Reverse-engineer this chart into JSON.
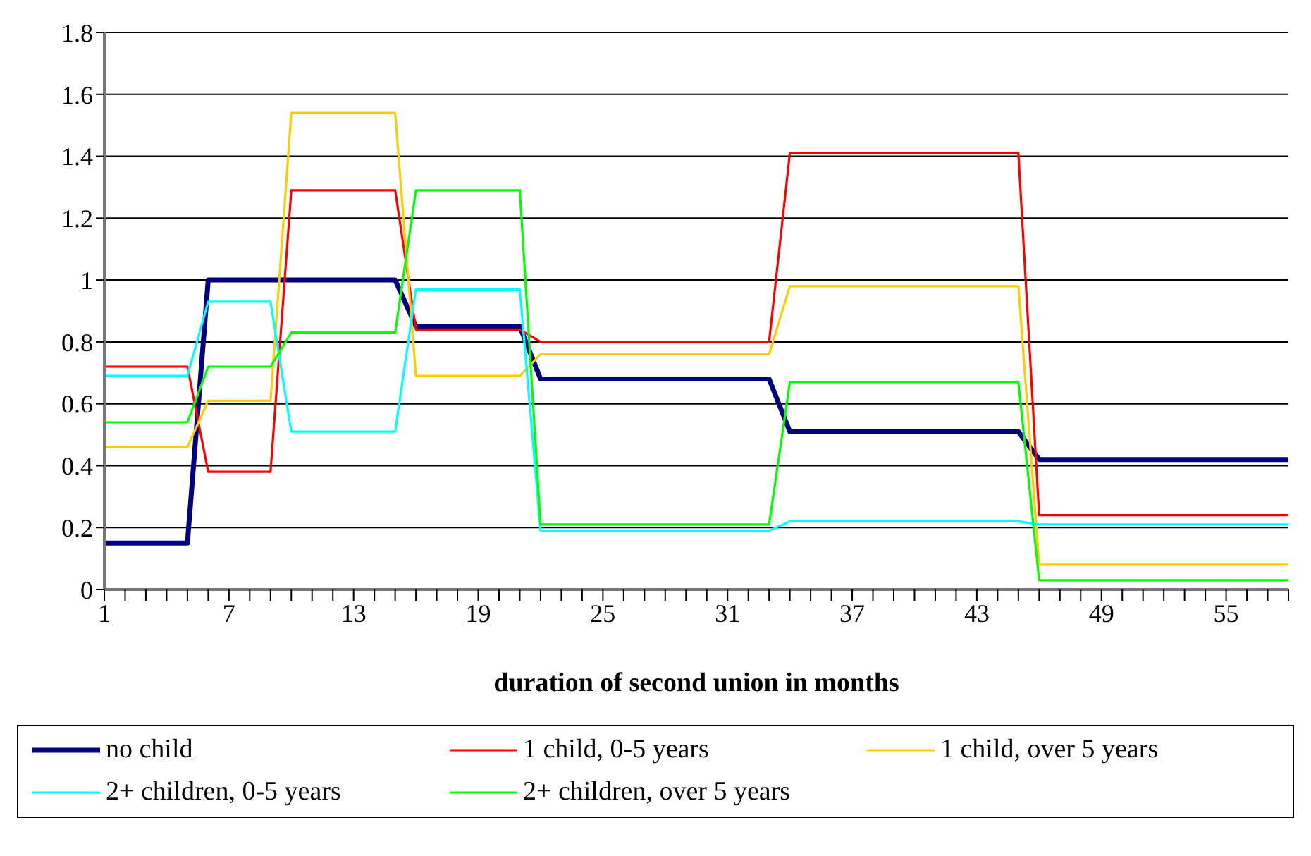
{
  "chart_data": {
    "type": "line",
    "xlabel": "duration of second union in months",
    "categories": [
      "1",
      null,
      null,
      null,
      null,
      null,
      "7",
      null,
      null,
      null,
      null,
      null,
      "13",
      null,
      null,
      null,
      null,
      null,
      "19",
      null,
      null,
      null,
      null,
      null,
      "25",
      null,
      null,
      null,
      null,
      null,
      "31",
      null,
      null,
      null,
      null,
      null,
      "37",
      null,
      null,
      null,
      null,
      null,
      "43",
      null,
      null,
      null,
      null,
      null,
      "49",
      null,
      null,
      null,
      null,
      null,
      "55",
      null,
      null,
      null
    ],
    "series": [
      {
        "name": "no child",
        "color": "#000080",
        "values": [
          0.15,
          0.15,
          0.15,
          0.15,
          0.15,
          1.0,
          1.0,
          1.0,
          1.0,
          1.0,
          1.0,
          1.0,
          1.0,
          1.0,
          1.0,
          0.85,
          0.85,
          0.85,
          0.85,
          0.85,
          0.85,
          0.68,
          0.68,
          0.68,
          0.68,
          0.68,
          0.68,
          0.68,
          0.68,
          0.68,
          0.68,
          0.68,
          0.68,
          0.51,
          0.51,
          0.51,
          0.51,
          0.51,
          0.51,
          0.51,
          0.51,
          0.51,
          0.51,
          0.51,
          0.51,
          0.42,
          0.42,
          0.42,
          0.42,
          0.42,
          0.42,
          0.42,
          0.42,
          0.42,
          0.42,
          0.42,
          0.42,
          0.42
        ]
      },
      {
        "name": "1 child, 0-5 years",
        "color": "#ff0000",
        "values": [
          0.72,
          0.72,
          0.72,
          0.72,
          0.72,
          0.38,
          0.38,
          0.38,
          0.38,
          1.29,
          1.29,
          1.29,
          1.29,
          1.29,
          1.29,
          0.84,
          0.84,
          0.84,
          0.84,
          0.84,
          0.84,
          0.8,
          0.8,
          0.8,
          0.8,
          0.8,
          0.8,
          0.8,
          0.8,
          0.8,
          0.8,
          0.8,
          0.8,
          1.41,
          1.41,
          1.41,
          1.41,
          1.41,
          1.41,
          1.41,
          1.41,
          1.41,
          1.41,
          1.41,
          1.41,
          0.24,
          0.24,
          0.24,
          0.24,
          0.24,
          0.24,
          0.24,
          0.24,
          0.24,
          0.24,
          0.24,
          0.24,
          0.24
        ]
      },
      {
        "name": "1 child, over 5 years",
        "color": "#ffcc00",
        "values": [
          0.46,
          0.46,
          0.46,
          0.46,
          0.46,
          0.61,
          0.61,
          0.61,
          0.61,
          1.54,
          1.54,
          1.54,
          1.54,
          1.54,
          1.54,
          0.69,
          0.69,
          0.69,
          0.69,
          0.69,
          0.69,
          0.76,
          0.76,
          0.76,
          0.76,
          0.76,
          0.76,
          0.76,
          0.76,
          0.76,
          0.76,
          0.76,
          0.76,
          0.98,
          0.98,
          0.98,
          0.98,
          0.98,
          0.98,
          0.98,
          0.98,
          0.98,
          0.98,
          0.98,
          0.98,
          0.08,
          0.08,
          0.08,
          0.08,
          0.08,
          0.08,
          0.08,
          0.08,
          0.08,
          0.08,
          0.08,
          0.08,
          0.08
        ]
      },
      {
        "name": "2+ children, 0-5 years",
        "color": "#00ffff",
        "values": [
          0.69,
          0.69,
          0.69,
          0.69,
          0.69,
          0.93,
          0.93,
          0.93,
          0.93,
          0.51,
          0.51,
          0.51,
          0.51,
          0.51,
          0.51,
          0.97,
          0.97,
          0.97,
          0.97,
          0.97,
          0.97,
          0.19,
          0.19,
          0.19,
          0.19,
          0.19,
          0.19,
          0.19,
          0.19,
          0.19,
          0.19,
          0.19,
          0.19,
          0.22,
          0.22,
          0.22,
          0.22,
          0.22,
          0.22,
          0.22,
          0.22,
          0.22,
          0.22,
          0.22,
          0.22,
          0.21,
          0.21,
          0.21,
          0.21,
          0.21,
          0.21,
          0.21,
          0.21,
          0.21,
          0.21,
          0.21,
          0.21,
          0.21
        ]
      },
      {
        "name": "2+ children, over 5 years",
        "color": "#00ff00",
        "values": [
          0.54,
          0.54,
          0.54,
          0.54,
          0.54,
          0.72,
          0.72,
          0.72,
          0.72,
          0.83,
          0.83,
          0.83,
          0.83,
          0.83,
          0.83,
          1.29,
          1.29,
          1.29,
          1.29,
          1.29,
          1.29,
          0.21,
          0.21,
          0.21,
          0.21,
          0.21,
          0.21,
          0.21,
          0.21,
          0.21,
          0.21,
          0.21,
          0.21,
          0.67,
          0.67,
          0.67,
          0.67,
          0.67,
          0.67,
          0.67,
          0.67,
          0.67,
          0.67,
          0.67,
          0.67,
          0.03,
          0.03,
          0.03,
          0.03,
          0.03,
          0.03,
          0.03,
          0.03,
          0.03,
          0.03,
          0.03,
          0.03,
          0.03
        ]
      }
    ],
    "ylim": [
      0,
      1.8
    ],
    "yticks": [
      0,
      0.2,
      0.4,
      0.6,
      0.8,
      1,
      1.2,
      1.4,
      1.6,
      1.8
    ],
    "grid": "y",
    "legend": "bottom",
    "marker": "none",
    "line_style": "solid"
  }
}
